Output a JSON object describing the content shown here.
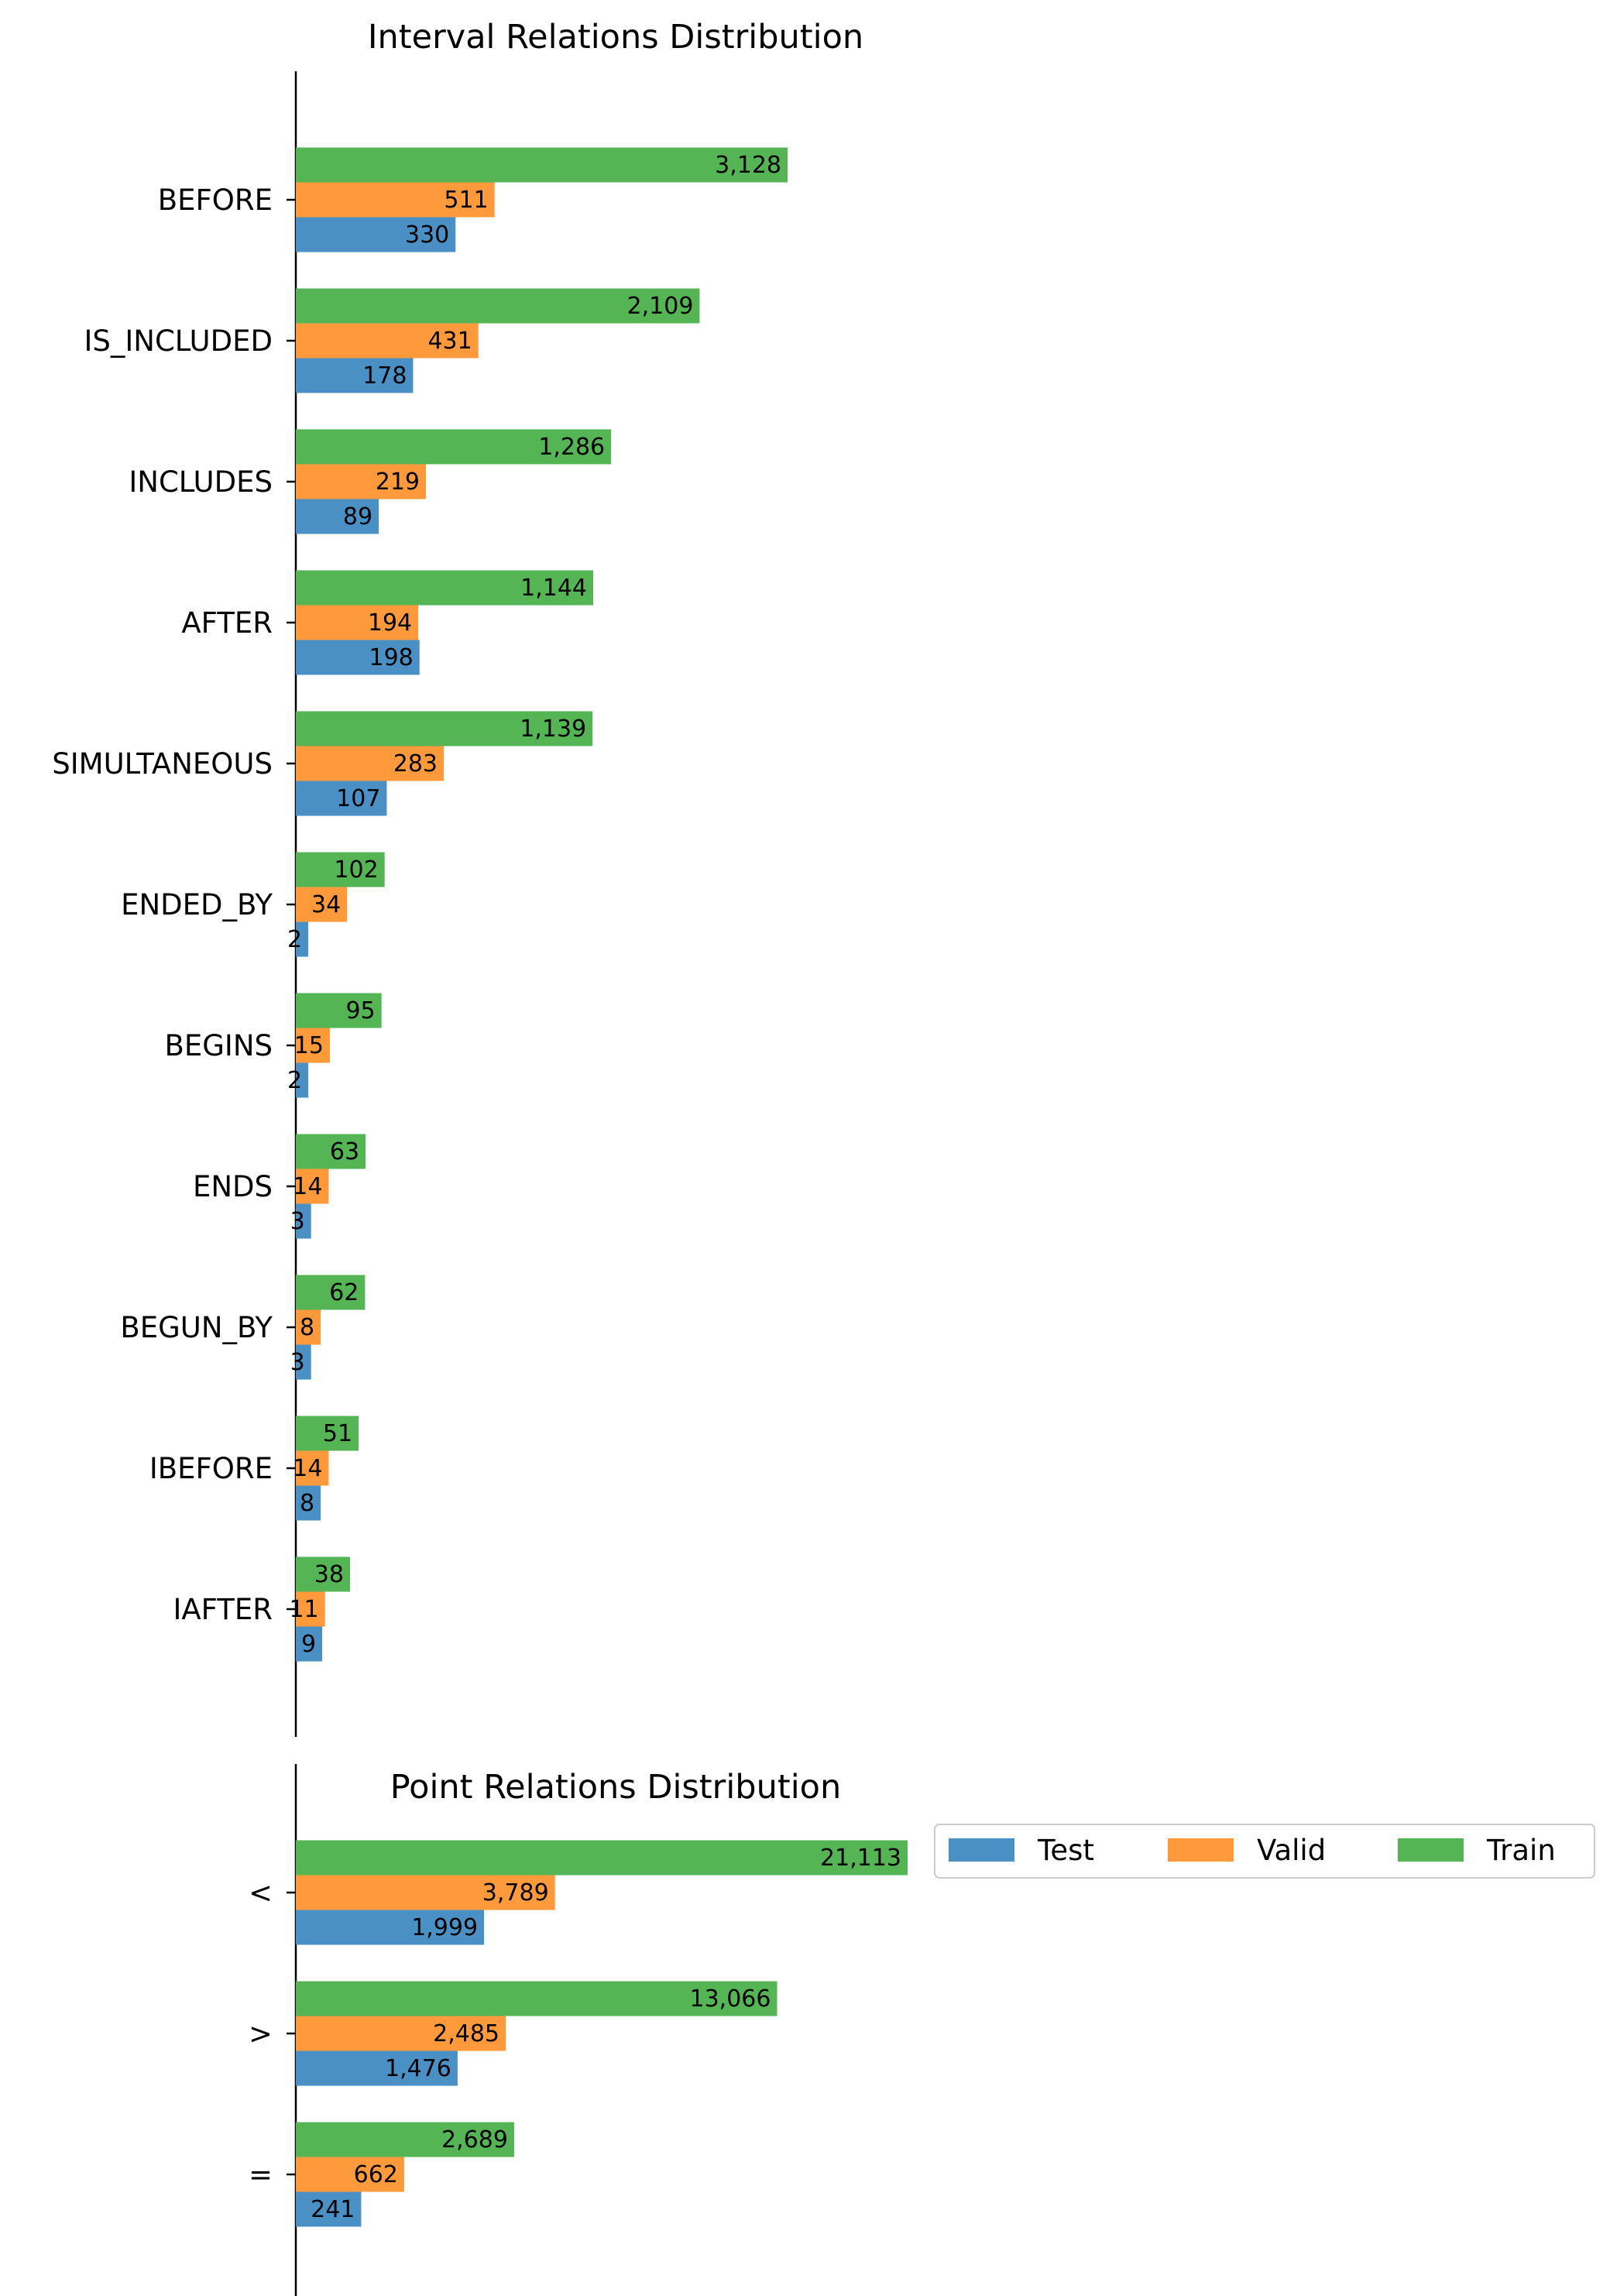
{
  "chart_data": [
    {
      "type": "bar",
      "orientation": "horizontal",
      "title": "Interval Relations Distribution",
      "xlabel": "",
      "ylabel": "",
      "scale": "sqrt",
      "grid": false,
      "categories": [
        "BEFORE",
        "IS_INCLUDED",
        "INCLUDES",
        "AFTER",
        "SIMULTANEOUS",
        "ENDED_BY",
        "BEGINS",
        "ENDS",
        "BEGUN_BY",
        "IBEFORE",
        "IAFTER"
      ],
      "series": [
        {
          "name": "Test",
          "color": "#4a90c4",
          "values": [
            330,
            178,
            89,
            198,
            107,
            2,
            2,
            3,
            3,
            8,
            9
          ],
          "labels": [
            "330",
            "178",
            "89",
            "198",
            "107",
            "2",
            "2",
            "3",
            "3",
            "8",
            "9"
          ]
        },
        {
          "name": "Valid",
          "color": "#ff9a3c",
          "values": [
            511,
            431,
            219,
            194,
            283,
            34,
            15,
            14,
            8,
            14,
            11
          ],
          "labels": [
            "511",
            "431",
            "219",
            "194",
            "283",
            "34",
            "15",
            "14",
            "8",
            "14",
            "11"
          ]
        },
        {
          "name": "Train",
          "color": "#55b555",
          "values": [
            3128,
            2109,
            1286,
            1144,
            1139,
            102,
            95,
            63,
            62,
            51,
            38
          ],
          "labels": [
            "3,128",
            "2,109",
            "1,286",
            "1,144",
            "1,139",
            "102",
            "95",
            "63",
            "62",
            "51",
            "38"
          ]
        }
      ]
    },
    {
      "type": "bar",
      "orientation": "horizontal",
      "title": "Point Relations Distribution",
      "xlabel": "",
      "ylabel": "",
      "scale": "sqrt",
      "grid": false,
      "legend": {
        "placement": "right",
        "columns": 3
      },
      "categories": [
        "<",
        ">",
        "="
      ],
      "series": [
        {
          "name": "Test",
          "color": "#4a90c4",
          "values": [
            1999,
            1476,
            241
          ],
          "labels": [
            "1,999",
            "1,476",
            "241"
          ]
        },
        {
          "name": "Valid",
          "color": "#ff9a3c",
          "values": [
            3789,
            2485,
            662
          ],
          "labels": [
            "3,789",
            "2,485",
            "662"
          ]
        },
        {
          "name": "Train",
          "color": "#55b555",
          "values": [
            21113,
            13066,
            2689
          ],
          "labels": [
            "21,113",
            "13,066",
            "2,689"
          ]
        }
      ]
    }
  ]
}
